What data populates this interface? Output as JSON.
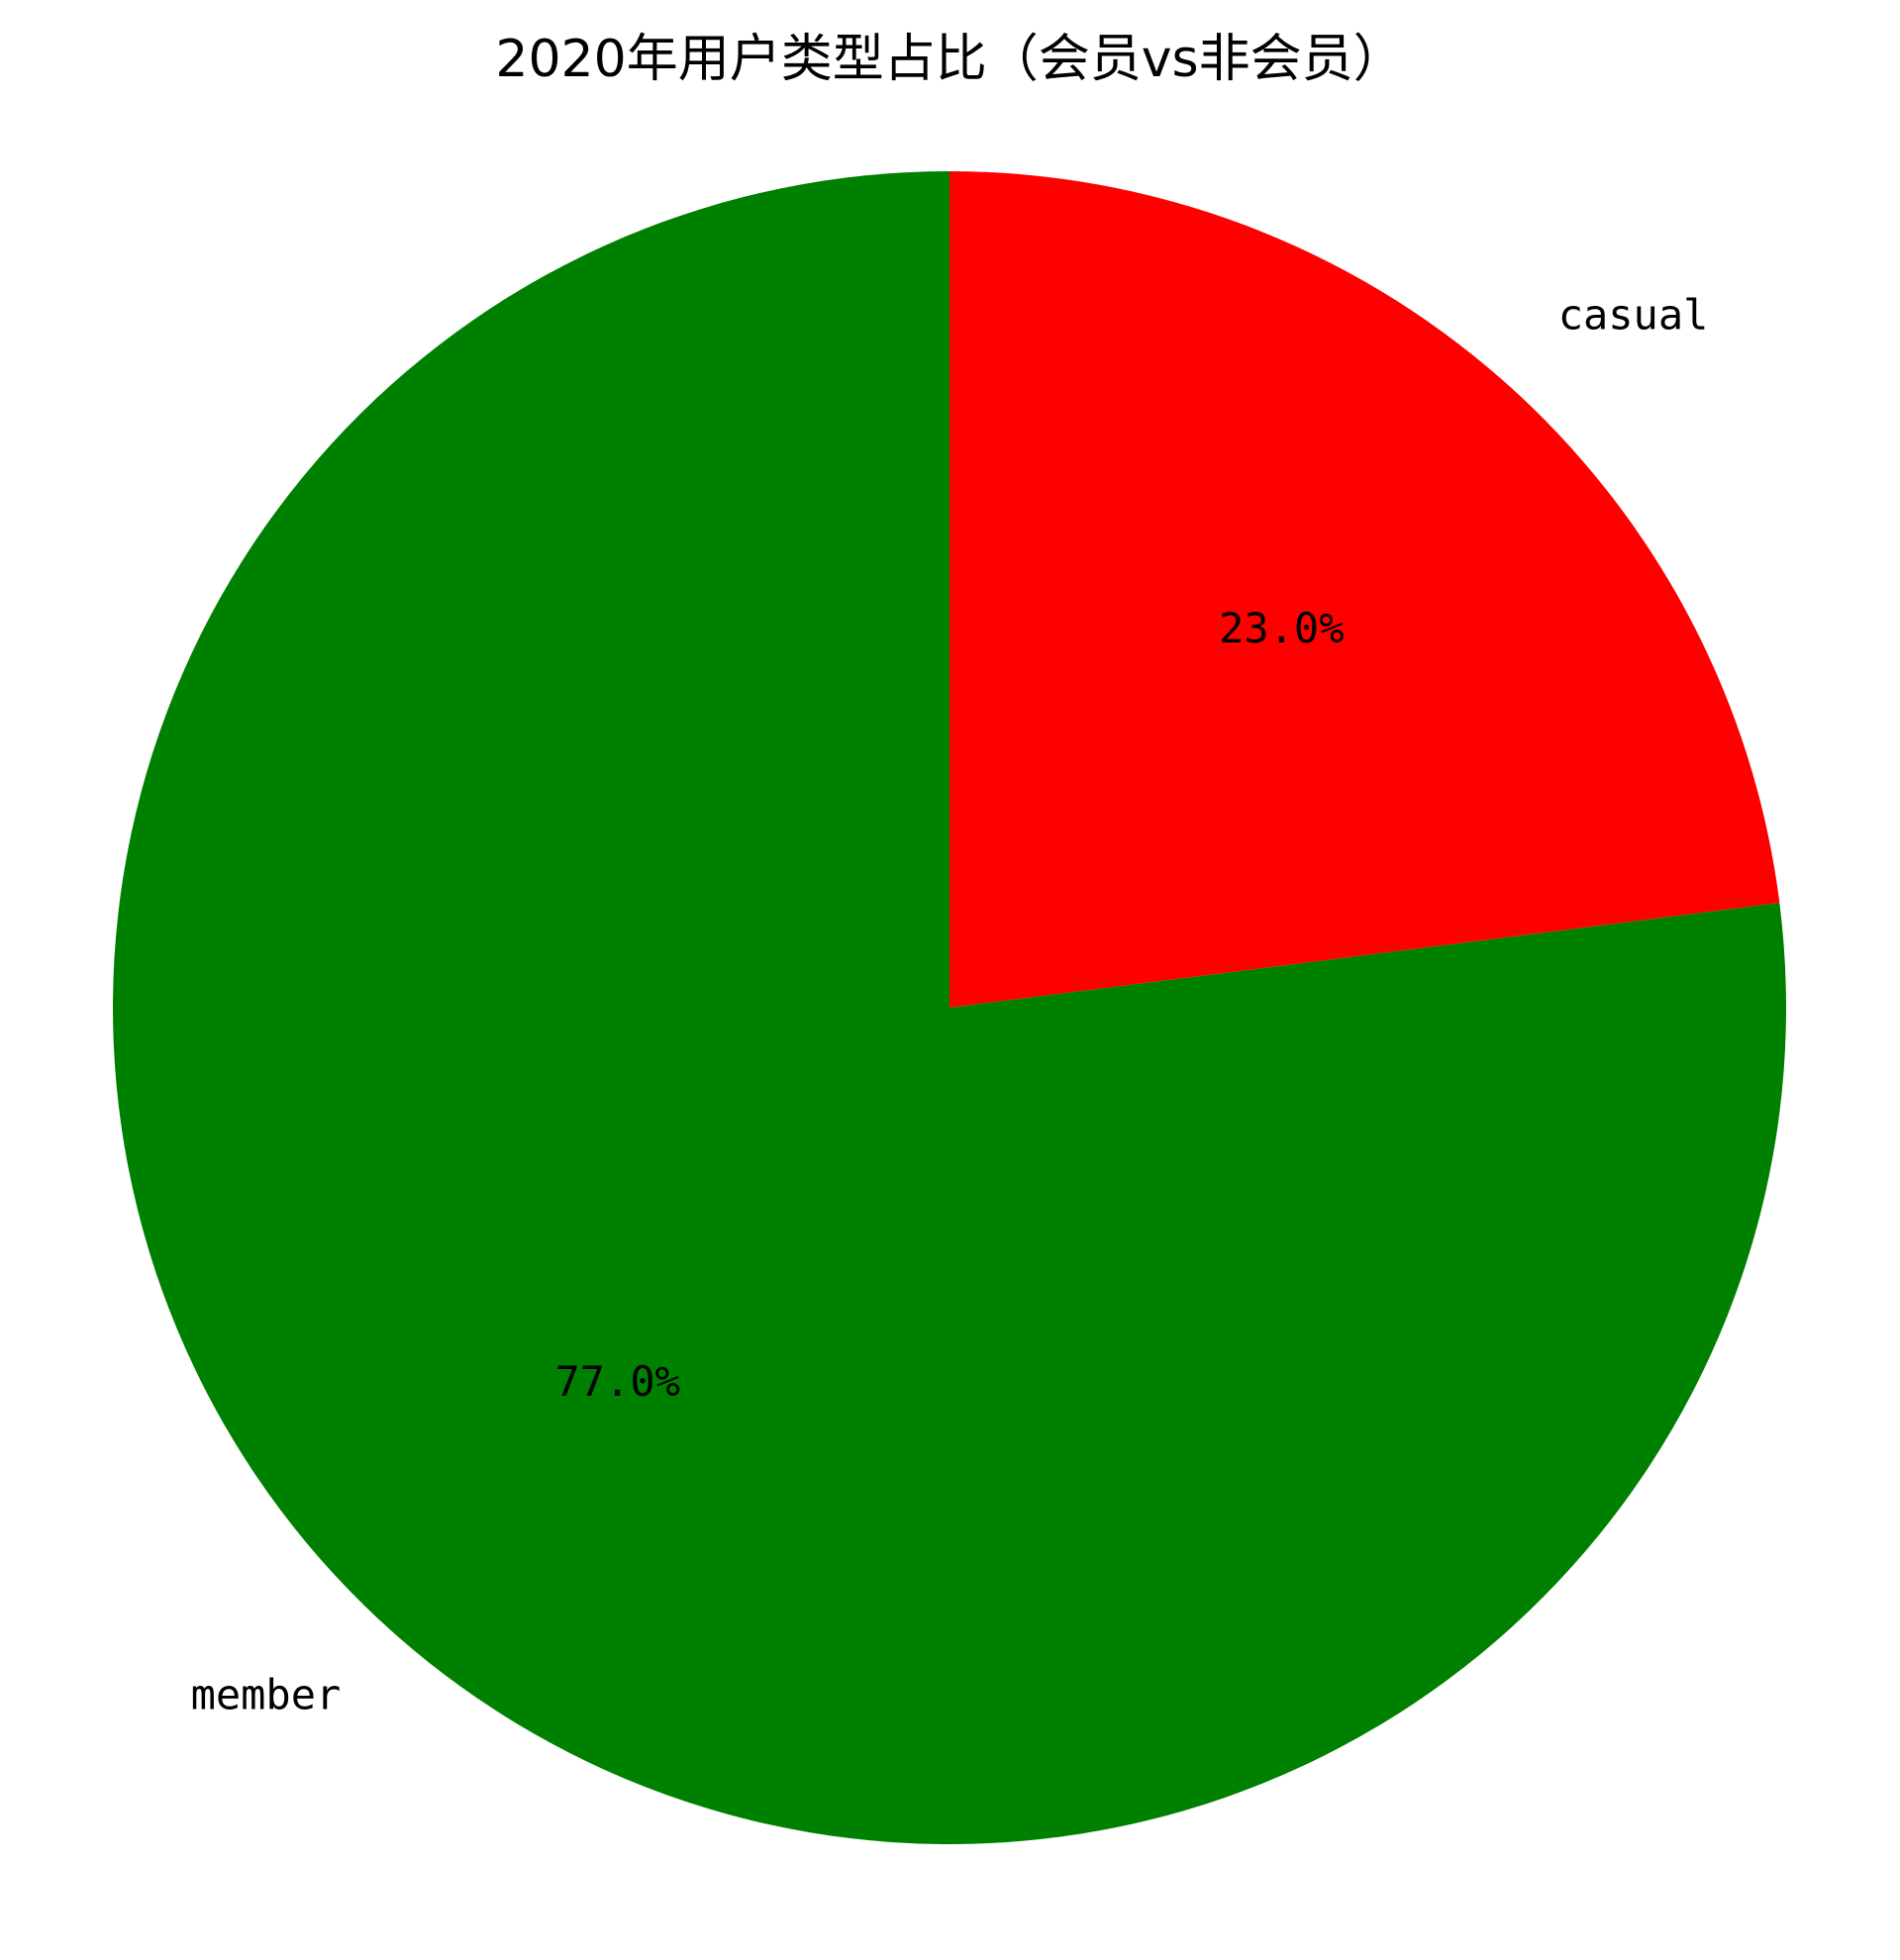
{
  "chart_data": {
    "type": "pie",
    "title": "2020年用户类型占比（会员vs非会员）",
    "slices": [
      {
        "label": "casual",
        "value": 23.0,
        "percent_label": "23.0%",
        "color": "#ff0000"
      },
      {
        "label": "member",
        "value": 77.0,
        "percent_label": "77.0%",
        "color": "#008000"
      }
    ],
    "start_angle_deg": 90,
    "direction": "clockwise"
  }
}
